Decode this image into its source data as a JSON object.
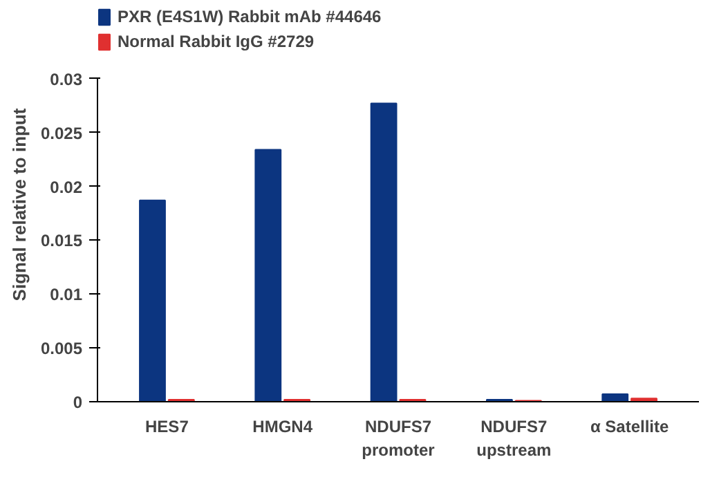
{
  "chart_data": {
    "type": "bar",
    "ylabel": "Signal relative to input",
    "categories": [
      "HES7",
      "HMGN4",
      "NDUFS7\npromoter",
      "NDUFS7\nupstream",
      "α Satellite"
    ],
    "series": [
      {
        "name": "PXR (E4S1W) Rabbit mAb #44646",
        "color": "#0c3580",
        "values": [
          0.0187,
          0.0234,
          0.0277,
          0.0002,
          0.0007
        ]
      },
      {
        "name": "Normal Rabbit IgG #2729",
        "color": "#e03030",
        "values": [
          0.0002,
          0.0002,
          0.0002,
          0.0001,
          0.0003
        ]
      }
    ],
    "ylim": [
      0,
      0.03
    ],
    "yticks": [
      0,
      0.005,
      0.01,
      0.015,
      0.02,
      0.025,
      0.03
    ],
    "grid": false,
    "legend": "top left"
  }
}
